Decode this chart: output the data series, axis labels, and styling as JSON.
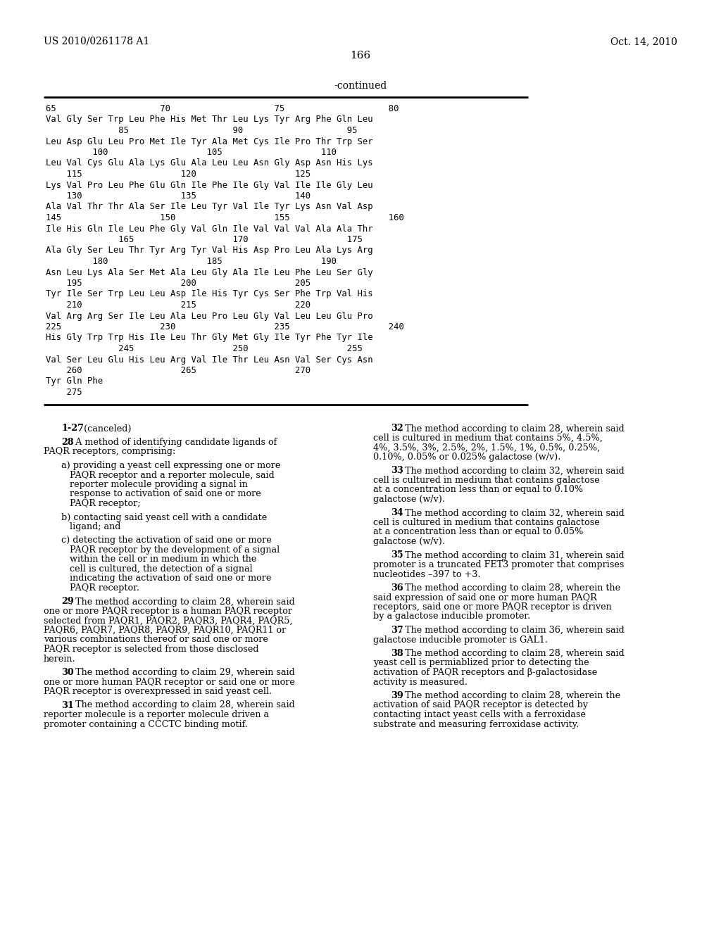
{
  "header_left": "US 2010/0261178 A1",
  "header_right": "Oct. 14, 2010",
  "page_number": "166",
  "continued_label": "-continued",
  "background_color": "#ffffff",
  "text_color": "#000000",
  "seq_lines": [
    "65                    70                    75                    80",
    "Val Gly Ser Trp Leu Phe His Met Thr Leu Lys Tyr Arg Phe Gln Leu",
    "              85                    90                    95",
    "Leu Asp Glu Leu Pro Met Ile Tyr Ala Met Cys Ile Pro Thr Trp Ser",
    "         100                   105                   110",
    "Leu Val Cys Glu Ala Lys Glu Ala Leu Leu Asn Gly Asp Asn His Lys",
    "    115                   120                   125",
    "Lys Val Pro Leu Phe Glu Gln Ile Phe Ile Gly Val Ile Ile Gly Leu",
    "    130                   135                   140",
    "Ala Val Thr Thr Ala Ser Ile Leu Tyr Val Ile Tyr Lys Asn Val Asp",
    "145                   150                   155                   160",
    "Ile His Gln Ile Leu Phe Gly Val Gln Ile Val Val Val Ala Ala Thr",
    "              165                   170                   175",
    "Ala Gly Ser Leu Thr Tyr Arg Tyr Val His Asp Pro Leu Ala Lys Arg",
    "         180                   185                   190",
    "Asn Leu Lys Ala Ser Met Ala Leu Gly Ala Ile Leu Phe Leu Ser Gly",
    "    195                   200                   205",
    "Tyr Ile Ser Trp Leu Leu Asp Ile His Tyr Cys Ser Phe Trp Val His",
    "    210                   215                   220",
    "Val Arg Arg Ser Ile Leu Ala Leu Pro Leu Gly Val Leu Leu Glu Pro",
    "225                   230                   235                   240",
    "His Gly Trp Trp His Ile Leu Thr Gly Met Gly Ile Tyr Phe Tyr Ile",
    "              245                   250                   255",
    "Val Ser Leu Glu His Leu Arg Val Ile Thr Leu Asn Val Ser Cys Asn",
    "    260                   265                   270",
    "Tyr Gln Phe",
    "    275"
  ],
  "left_blocks": [
    {
      "bold": "1-27",
      "normal": ". (canceled)",
      "indent": false
    },
    {
      "bold": "28",
      "normal": ". A method of identifying candidate ligands of PAQR receptors, comprising:",
      "indent": false
    },
    {
      "bold": "",
      "normal": "a) providing a yeast cell expressing one or more PAQR receptor and a reporter molecule, said reporter molecule providing a signal in response to activation of said one or more PAQR receptor;",
      "indent": true
    },
    {
      "bold": "",
      "normal": "b) contacting said yeast cell with a candidate ligand; and",
      "indent": true
    },
    {
      "bold": "",
      "normal": "c) detecting the activation of said one or more PAQR receptor by the development of a signal within the cell or in medium in which the cell is cultured, the detection of a signal indicating the activation of said one or more PAQR receptor.",
      "indent": true
    },
    {
      "bold": "29",
      "normal": ". The method according to claim 28, wherein said one or more PAQR receptor is a human PAQR receptor selected from PAQR1, PAQR2, PAQR3, PAQR4, PAQR5, PAQR6, PAQR7, PAQR8, PAQR9, PAQR10, PAQR11 or various combinations thereof or said one or more PAQR receptor is selected from those disclosed herein.",
      "indent": false
    },
    {
      "bold": "30",
      "normal": ". The method according to claim 29, wherein said one or more human PAQR receptor or said one or more PAQR receptor is overexpressed in said yeast cell.",
      "indent": false
    },
    {
      "bold": "31",
      "normal": ". The method according to claim 28, wherein said reporter molecule is a reporter molecule driven a promoter containing a CCCTC binding motif.",
      "indent": false
    }
  ],
  "right_blocks": [
    {
      "bold": "32",
      "normal": ". The method according to claim 28, wherein said cell is cultured in medium that contains 5%, 4.5%, 4%, 3.5%, 3%, 2.5%, 2%, 1.5%, 1%, 0.5%, 0.25%, 0.10%, 0.05% or 0.025% galactose (w/v)."
    },
    {
      "bold": "33",
      "normal": ". The method according to claim 32, wherein said cell is cultured in medium that contains galactose at a concentration less than or equal to 0.10% galactose (w/v)."
    },
    {
      "bold": "34",
      "normal": ". The method according to claim 32, wherein said cell is cultured in medium that contains galactose at a concentration less than or equal to 0.05% galactose (w/v)."
    },
    {
      "bold": "35",
      "normal": ". The method according to claim 31, wherein said promoter is a truncated FET3 promoter that comprises nucleotides –397 to +3."
    },
    {
      "bold": "36",
      "normal": ". The method according to claim 28, wherein the said expression of said one or more human PAQR receptors, said one or more PAQR receptor is driven by a galactose inducible promoter."
    },
    {
      "bold": "37",
      "normal": ". The method according to claim 36, wherein said galactose inducible promoter is GAL1."
    },
    {
      "bold": "38",
      "normal": ". The method according to claim 28, wherein said yeast cell is permiablized prior to detecting the activation of PAQR receptors and β-galactosidase activity is measured."
    },
    {
      "bold": "39",
      "normal": ". The method according to claim 28, wherein the activation of said PAQR receptor is detected by contacting intact yeast cells with a ferroxidase substrate and measuring ferroxidase activity."
    }
  ]
}
